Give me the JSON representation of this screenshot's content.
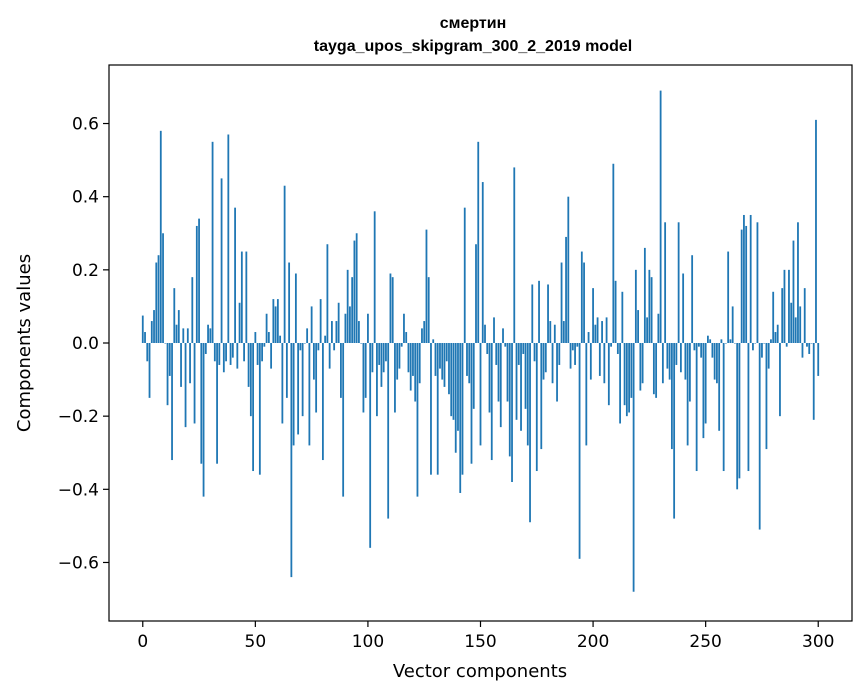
{
  "chart_data": {
    "type": "bar",
    "title": "смертин",
    "subtitle": "tayga_upos_skipgram_300_2_2019 model",
    "xlabel": "Vector components",
    "ylabel": "Components values",
    "xlim": [
      -15,
      315
    ],
    "ylim": [
      -0.76,
      0.76
    ],
    "x_ticks": [
      0,
      50,
      100,
      150,
      200,
      250,
      300
    ],
    "x_tick_labels": [
      "0",
      "50",
      "100",
      "150",
      "200",
      "250",
      "300"
    ],
    "y_ticks": [
      -0.6,
      -0.4,
      -0.2,
      0.0,
      0.2,
      0.4,
      0.6
    ],
    "y_tick_labels": [
      "−0.6",
      "−0.4",
      "−0.2",
      "0.0",
      "0.2",
      "0.4",
      "0.6"
    ],
    "bar_color": "#1f77b4",
    "values": [
      0.075,
      0.03,
      -0.05,
      -0.15,
      0.06,
      0.09,
      0.22,
      0.24,
      0.58,
      0.3,
      0.0,
      -0.17,
      -0.09,
      -0.32,
      0.15,
      0.05,
      0.09,
      -0.12,
      0.04,
      -0.23,
      0.04,
      -0.11,
      0.18,
      -0.22,
      0.32,
      0.34,
      -0.33,
      -0.42,
      -0.03,
      0.05,
      0.04,
      0.55,
      -0.05,
      -0.33,
      -0.06,
      0.45,
      -0.08,
      -0.05,
      0.57,
      -0.06,
      -0.04,
      0.37,
      -0.07,
      0.11,
      0.25,
      -0.05,
      0.25,
      -0.12,
      -0.2,
      -0.35,
      0.03,
      -0.06,
      -0.36,
      -0.05,
      -0.01,
      0.08,
      0.03,
      -0.07,
      0.12,
      0.1,
      0.12,
      0.02,
      -0.22,
      0.43,
      -0.15,
      0.22,
      -0.64,
      -0.28,
      0.19,
      -0.25,
      -0.02,
      -0.2,
      0.0,
      0.04,
      -0.28,
      0.1,
      -0.1,
      -0.19,
      -0.02,
      0.12,
      -0.32,
      0.02,
      0.27,
      -0.07,
      0.06,
      -0.02,
      0.06,
      0.11,
      -0.15,
      -0.42,
      0.08,
      0.2,
      0.1,
      0.18,
      0.28,
      0.3,
      0.06,
      0.0,
      -0.19,
      -0.15,
      0.08,
      -0.56,
      -0.08,
      0.36,
      -0.2,
      -0.06,
      -0.12,
      -0.08,
      -0.05,
      -0.48,
      0.19,
      0.18,
      -0.19,
      -0.1,
      -0.07,
      -0.01,
      0.08,
      0.03,
      -0.08,
      -0.13,
      -0.09,
      -0.16,
      -0.42,
      -0.11,
      0.04,
      0.06,
      0.31,
      0.18,
      -0.36,
      0.01,
      -0.09,
      -0.36,
      -0.07,
      -0.1,
      -0.12,
      -0.05,
      -0.14,
      -0.2,
      -0.21,
      -0.3,
      -0.24,
      -0.41,
      -0.36,
      0.37,
      -0.09,
      -0.11,
      -0.33,
      -0.18,
      0.27,
      0.55,
      -0.28,
      0.44,
      0.05,
      -0.03,
      -0.19,
      -0.32,
      0.07,
      -0.06,
      -0.16,
      -0.23,
      0.04,
      -0.01,
      -0.16,
      -0.31,
      -0.38,
      0.48,
      -0.21,
      -0.06,
      -0.24,
      -0.03,
      -0.18,
      -0.28,
      -0.49,
      0.16,
      -0.05,
      -0.35,
      0.17,
      -0.29,
      -0.1,
      -0.08,
      0.16,
      0.06,
      -0.11,
      0.05,
      -0.16,
      -0.06,
      0.22,
      0.06,
      0.29,
      0.4,
      -0.07,
      -0.02,
      -0.06,
      -0.01,
      -0.59,
      0.25,
      0.22,
      -0.28,
      0.03,
      -0.1,
      0.15,
      0.05,
      0.07,
      -0.09,
      0.06,
      -0.11,
      0.07,
      -0.17,
      -0.01,
      0.49,
      0.17,
      -0.03,
      -0.22,
      0.14,
      -0.17,
      -0.2,
      -0.19,
      -0.15,
      -0.68,
      0.2,
      0.09,
      -0.13,
      -0.11,
      0.26,
      0.07,
      0.2,
      0.18,
      -0.14,
      -0.15,
      0.08,
      0.69,
      -0.11,
      0.33,
      -0.07,
      -0.1,
      -0.29,
      -0.48,
      -0.06,
      0.33,
      -0.08,
      0.19,
      -0.1,
      -0.28,
      -0.16,
      0.24,
      -0.02,
      -0.35,
      -0.01,
      -0.04,
      -0.26,
      -0.22,
      0.02,
      0.01,
      -0.04,
      -0.1,
      -0.11,
      -0.24,
      0.01,
      -0.35,
      0.0,
      0.25,
      0.01,
      0.1,
      0.0,
      -0.4,
      -0.37,
      0.31,
      0.35,
      0.32,
      -0.35,
      0.35,
      -0.02,
      0.0,
      0.33,
      -0.51,
      -0.04,
      0.0,
      -0.29,
      -0.07,
      0.01,
      0.14,
      0.03,
      0.05,
      -0.2,
      0.15,
      0.2,
      -0.01,
      0.2,
      0.11,
      0.28,
      0.07,
      0.33,
      0.1,
      -0.04,
      0.15,
      -0.01,
      -0.03,
      0.0,
      -0.21,
      0.61,
      -0.09
    ]
  }
}
